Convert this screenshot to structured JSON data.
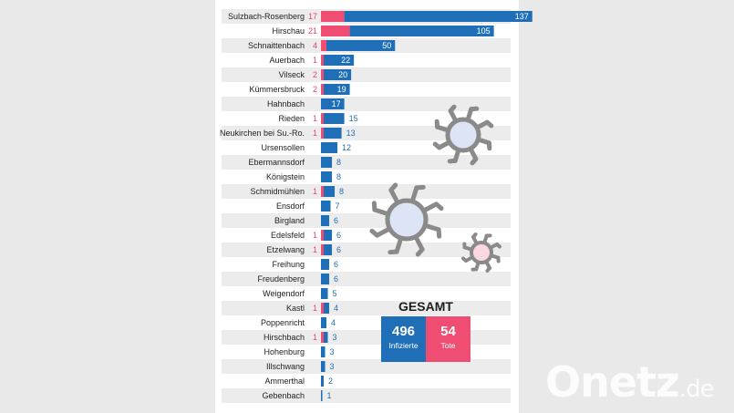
{
  "chart_data": {
    "type": "bar",
    "orientation": "horizontal",
    "stacked": true,
    "categories": [
      "Sulzbach-Rosenberg",
      "Hirschau",
      "Schnaittenbach",
      "Auerbach",
      "Vilseck",
      "Kümmersbruck",
      "Hahnbach",
      "Rieden",
      "Neukirchen bei Su.-Ro.",
      "Ursensollen",
      "Ebermannsdorf",
      "Königstein",
      "Schmidmühlen",
      "Ensdorf",
      "Birgland",
      "Edelsfeld",
      "Etzelwang",
      "Freihung",
      "Freudenberg",
      "Weigendorf",
      "Kastl",
      "Poppenricht",
      "Hirschbach",
      "Hohenburg",
      "Illschwang",
      "Ammerthal",
      "Gebenbach"
    ],
    "series": [
      {
        "name": "Tote",
        "color": "#f04d73",
        "values": [
          17,
          21,
          4,
          1,
          2,
          2,
          0,
          1,
          1,
          0,
          0,
          0,
          1,
          0,
          0,
          1,
          1,
          0,
          0,
          0,
          1,
          0,
          1,
          0,
          0,
          0,
          0
        ]
      },
      {
        "name": "Infizierte",
        "color": "#1f6fb8",
        "values": [
          137,
          105,
          50,
          22,
          20,
          19,
          17,
          15,
          13,
          12,
          8,
          8,
          8,
          7,
          6,
          6,
          6,
          6,
          6,
          5,
          4,
          4,
          3,
          3,
          3,
          2,
          1
        ]
      }
    ],
    "grid": false
  },
  "summary": {
    "title": "GESAMT",
    "infected_value": "496",
    "infected_label": "Infizierte",
    "dead_value": "54",
    "dead_label": "Tote"
  },
  "watermark": {
    "brand": "Onetz",
    "tld": ".de"
  },
  "icons": [
    "virus-icon",
    "virus-icon",
    "virus-icon"
  ]
}
